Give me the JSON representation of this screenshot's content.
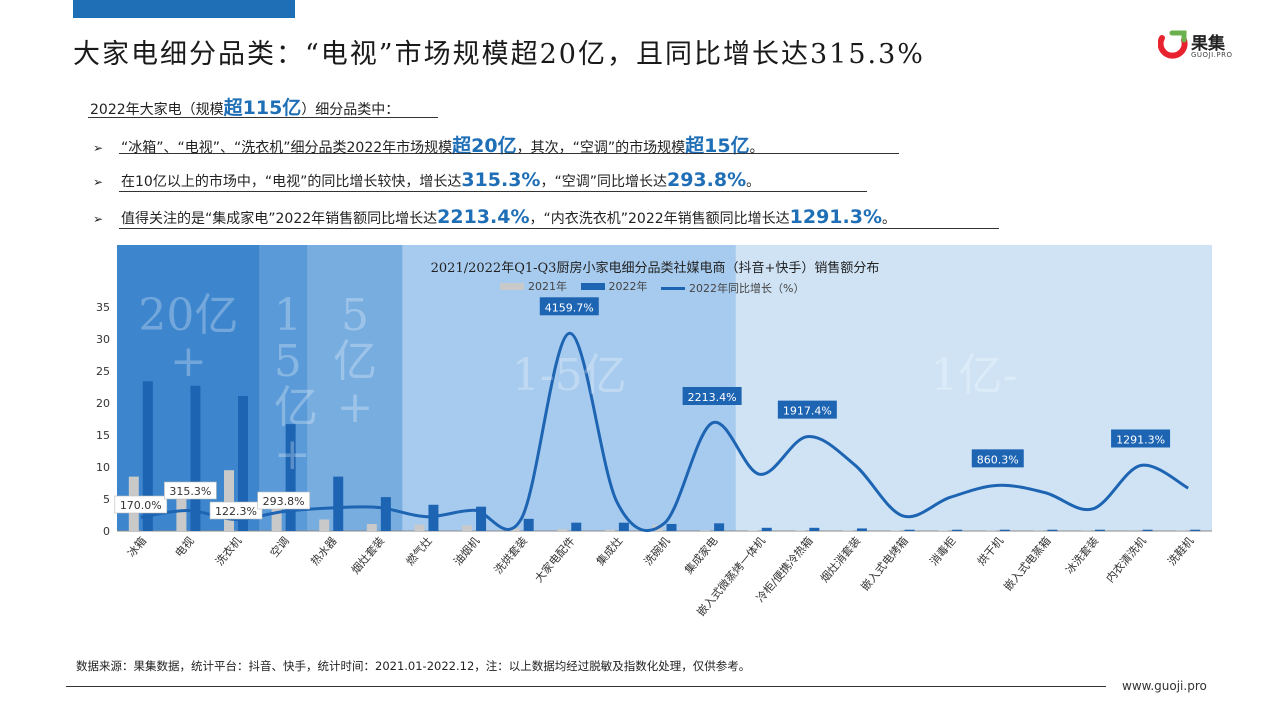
{
  "title": "大家电细分品类：“电视”市场规模超20亿，且同比增长达315.3%",
  "logo": {
    "name": "果集",
    "sub": "GUOJI.PRO"
  },
  "intro": {
    "pre": "2022年大家电（规模",
    "hl": "超115亿",
    "post": "）细分品类中："
  },
  "bullets": [
    {
      "arrow": "➢",
      "parts": [
        {
          "t": "“冰箱”、“电视”、“洗衣机”细分品类2022年市场规模",
          "h": false
        },
        {
          "t": "超20亿",
          "h": true
        },
        {
          "t": "，其次，“空调”的市场规模",
          "h": false
        },
        {
          "t": "超15亿",
          "h": true
        },
        {
          "t": "。",
          "h": false
        }
      ]
    },
    {
      "arrow": "➢",
      "parts": [
        {
          "t": "在10亿以上的市场中，“电视”的同比增长较快，增长达",
          "h": false
        },
        {
          "t": "315.3%",
          "h": true
        },
        {
          "t": "，“空调”同比增长达",
          "h": false
        },
        {
          "t": "293.8%",
          "h": true
        },
        {
          "t": "。",
          "h": false
        }
      ]
    },
    {
      "arrow": "➢",
      "parts": [
        {
          "t": "值得关注的是“集成家电”2022年销售额同比增长达",
          "h": false
        },
        {
          "t": "2213.4%",
          "h": true
        },
        {
          "t": "，“内衣洗衣机”2022年销售额同比增长达",
          "h": false
        },
        {
          "t": "1291.3%",
          "h": true
        },
        {
          "t": "。",
          "h": false
        }
      ]
    }
  ],
  "chart_data": {
    "type": "bar",
    "title": "2021/2022年Q1-Q3厨房小家电细分品类社媒电商（抖音+快手）销售额分布",
    "legend": [
      "2021年",
      "2022年",
      "2022年同比增长（%）"
    ],
    "categories": [
      "冰箱",
      "电视",
      "洗衣机",
      "空调",
      "热水器",
      "烟灶套装",
      "燃气灶",
      "油烟机",
      "洗烘套装",
      "大家电配件",
      "集成灶",
      "洗碗机",
      "集成家电",
      "嵌入式微蒸烤一体机",
      "冷柜/便携冷热箱",
      "烟灶消套装",
      "嵌入式电烤箱",
      "消毒柜",
      "烘干机",
      "嵌入式电蒸箱",
      "冰洗套装",
      "内衣清洗机",
      "洗鞋机"
    ],
    "series": [
      {
        "name": "2021年",
        "values": [
          8.5,
          5.5,
          9.5,
          5.7,
          1.8,
          1.1,
          1.0,
          0.9,
          0.4,
          0.3,
          0.2,
          0.9,
          0.1,
          0.1,
          0.1,
          0.1,
          0.1,
          0.1,
          0.05,
          0.05,
          0.05,
          0.02,
          0.05
        ]
      },
      {
        "name": "2022年",
        "values": [
          23.4,
          22.7,
          21.1,
          16.7,
          8.5,
          5.3,
          4.1,
          3.8,
          1.9,
          1.3,
          1.3,
          1.1,
          1.2,
          0.5,
          0.5,
          0.4,
          0.2,
          0.2,
          0.2,
          0.2,
          0.2,
          0.2,
          0.2
        ]
      }
    ],
    "growth": {
      "name": "2022年同比增长（%）",
      "values": [
        170.0,
        315.3,
        122.3,
        293.8,
        370,
        380,
        180,
        320,
        150,
        4159.7,
        500,
        40,
        2213.4,
        1100,
        1917.4,
        1300,
        200,
        600,
        860.3,
        700,
        350,
        1291.3,
        800
      ],
      "labels": {
        "0": "170.0%",
        "1": "315.3%",
        "2": "122.3%",
        "3": "293.8%",
        "9": "4159.7%",
        "12": "2213.4%",
        "14": "1917.4%",
        "18": "860.3%",
        "21": "1291.3%"
      }
    },
    "ylim": [
      0,
      35
    ],
    "yticks": [
      0,
      5,
      10,
      15,
      20,
      25,
      30,
      35
    ],
    "tiers": [
      {
        "label": "20亿+",
        "from": 0,
        "to": 2,
        "color": "#3d86cd"
      },
      {
        "label": "15亿+",
        "from": 3,
        "to": 3,
        "color": "#5a9ad8"
      },
      {
        "label": "5亿+",
        "from": 4,
        "to": 5,
        "color": "#78ade0"
      },
      {
        "label": "1-5亿",
        "from": 6,
        "to": 12,
        "color": "#a7cbee"
      },
      {
        "label": "1亿-",
        "from": 13,
        "to": 22,
        "color": "#cfe3f5"
      }
    ],
    "colors": {
      "y2021": "#c9c9c9",
      "y2022": "#1d64b3",
      "growth": "#1d64b3"
    }
  },
  "source": "数据来源：果集数据，统计平台：抖音、快手，统计时间：2021.01-2022.12，注：以上数据均经过脱敏及指数化处理，仅供参考。",
  "site": "www.guoji.pro"
}
